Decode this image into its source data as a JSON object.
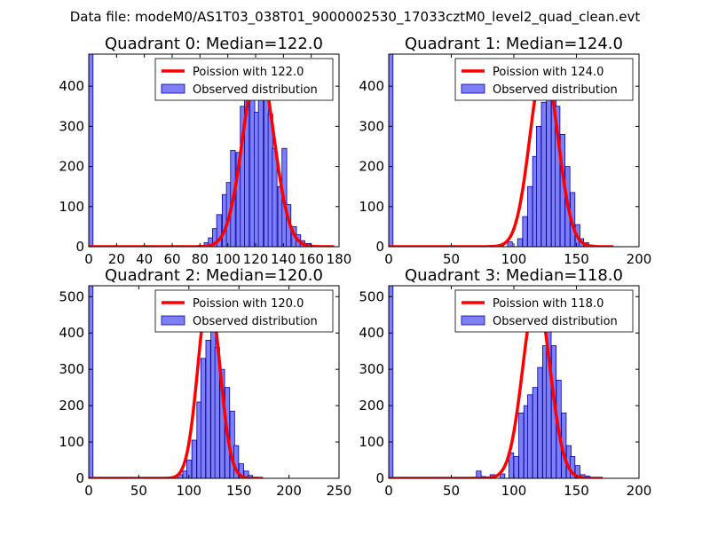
{
  "figure_title": "Data file: modeM0/AS1T03_038T01_9000002530_17033cztM0_level2_quad_clean.evt",
  "colors": {
    "bar_fill": "#7f7ff5",
    "bar_edge": "#0000aa",
    "poisson": "#ff0000",
    "axes": "#000000"
  },
  "chart_data": [
    {
      "type": "bar",
      "title": "Quadrant 0: Median=122.0",
      "xlim": [
        0,
        180
      ],
      "ylim": [
        0,
        480
      ],
      "xticks": [
        0,
        20,
        40,
        60,
        80,
        100,
        120,
        140,
        160,
        180
      ],
      "yticks": [
        0,
        100,
        200,
        300,
        400
      ],
      "bin_width": 3.4,
      "spike": {
        "x": 0,
        "value": 480
      },
      "bins": [
        [
          66,
          1
        ],
        [
          79,
          3
        ],
        [
          83,
          10
        ],
        [
          86,
          22
        ],
        [
          89,
          45
        ],
        [
          92,
          80
        ],
        [
          96,
          130
        ],
        [
          99,
          160
        ],
        [
          102,
          240
        ],
        [
          106,
          235
        ],
        [
          109,
          350
        ],
        [
          112,
          400
        ],
        [
          116,
          460
        ],
        [
          119,
          335
        ],
        [
          122,
          460
        ],
        [
          126,
          400
        ],
        [
          129,
          330
        ],
        [
          132,
          245
        ],
        [
          136,
          150
        ],
        [
          139,
          245
        ],
        [
          142,
          105
        ],
        [
          146,
          50
        ],
        [
          149,
          30
        ],
        [
          152,
          15
        ],
        [
          156,
          8
        ]
      ],
      "poisson_label": "Poission with 122.0",
      "poisson_mean": 122.0,
      "poisson_peak": 460,
      "observed_label": "Observed distribution"
    },
    {
      "type": "bar",
      "title": "Quadrant 1: Median=124.0",
      "xlim": [
        0,
        200
      ],
      "ylim": [
        0,
        480
      ],
      "xticks": [
        0,
        50,
        100,
        150,
        200
      ],
      "yticks": [
        0,
        100,
        200,
        300,
        400
      ],
      "bin_width": 3.8,
      "spike": {
        "x": 0,
        "value": 480
      },
      "bins": [
        [
          73,
          2
        ],
        [
          80,
          3
        ],
        [
          88,
          5
        ],
        [
          95,
          12
        ],
        [
          103,
          20
        ],
        [
          107,
          75
        ],
        [
          111,
          150
        ],
        [
          115,
          225
        ],
        [
          118,
          300
        ],
        [
          122,
          360
        ],
        [
          126,
          420
        ],
        [
          130,
          430
        ],
        [
          133,
          350
        ],
        [
          137,
          280
        ],
        [
          141,
          200
        ],
        [
          145,
          135
        ],
        [
          149,
          55
        ],
        [
          152,
          20
        ],
        [
          156,
          10
        ],
        [
          160,
          4
        ]
      ],
      "poisson_label": "Poission with 124.0",
      "poisson_mean": 124.0,
      "poisson_peak": 455,
      "observed_label": "Observed distribution"
    },
    {
      "type": "bar",
      "title": "Quadrant 2: Median=120.0",
      "xlim": [
        0,
        250
      ],
      "ylim": [
        0,
        530
      ],
      "xticks": [
        0,
        50,
        100,
        150,
        200,
        250
      ],
      "yticks": [
        0,
        100,
        200,
        300,
        400,
        500
      ],
      "bin_width": 4.7,
      "spike": {
        "x": 0,
        "value": 530
      },
      "bins": [
        [
          65,
          2
        ],
        [
          70,
          2
        ],
        [
          80,
          3
        ],
        [
          89,
          10
        ],
        [
          94,
          20
        ],
        [
          98,
          50
        ],
        [
          103,
          105
        ],
        [
          108,
          210
        ],
        [
          112,
          330
        ],
        [
          117,
          380
        ],
        [
          122,
          445
        ],
        [
          126,
          360
        ],
        [
          131,
          300
        ],
        [
          136,
          250
        ],
        [
          141,
          185
        ],
        [
          145,
          90
        ],
        [
          150,
          40
        ],
        [
          155,
          20
        ],
        [
          159,
          8
        ],
        [
          164,
          3
        ]
      ],
      "poisson_label": "Poission with 120.0",
      "poisson_mean": 120.0,
      "poisson_peak": 510,
      "observed_label": "Observed distribution"
    },
    {
      "type": "bar",
      "title": "Quadrant 3: Median=118.0",
      "xlim": [
        0,
        200
      ],
      "ylim": [
        0,
        530
      ],
      "xticks": [
        0,
        50,
        100,
        150,
        200
      ],
      "yticks": [
        0,
        100,
        200,
        300,
        400,
        500
      ],
      "bin_width": 3.8,
      "spike": {
        "x": 0,
        "value": 530
      },
      "bins": [
        [
          66,
          3
        ],
        [
          70,
          20
        ],
        [
          74,
          5
        ],
        [
          81,
          10
        ],
        [
          89,
          12
        ],
        [
          96,
          70
        ],
        [
          100,
          60
        ],
        [
          104,
          180
        ],
        [
          108,
          200
        ],
        [
          111,
          230
        ],
        [
          115,
          250
        ],
        [
          119,
          305
        ],
        [
          123,
          365
        ],
        [
          126,
          420
        ],
        [
          130,
          365
        ],
        [
          134,
          270
        ],
        [
          138,
          180
        ],
        [
          142,
          90
        ],
        [
          145,
          60
        ],
        [
          149,
          35
        ],
        [
          153,
          10
        ],
        [
          157,
          6
        ]
      ],
      "poisson_label": "Poission with 118.0",
      "poisson_mean": 118.0,
      "poisson_peak": 505,
      "observed_label": "Observed distribution"
    }
  ]
}
